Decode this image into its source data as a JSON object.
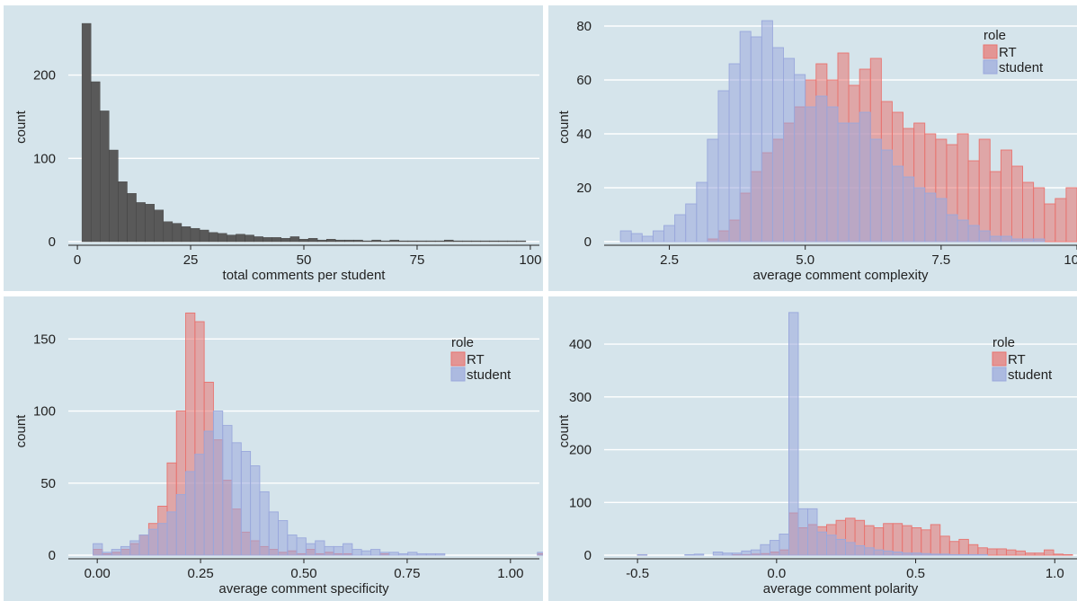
{
  "chart_data": [
    {
      "type": "bar",
      "xlabel": "total comments per student",
      "ylabel": "count",
      "xlim": [
        -2,
        102
      ],
      "ylim": [
        0,
        275
      ],
      "xticks": [
        0,
        25,
        50,
        75,
        100
      ],
      "xtick_labels": [
        "0",
        "25",
        "50",
        "75",
        "100"
      ],
      "yticks": [
        0,
        100,
        200
      ],
      "ytick_labels": [
        "0",
        "100",
        "200"
      ],
      "grid": true,
      "bin_start": 1,
      "bin_width": 2,
      "series": [
        {
          "name": "",
          "color": "#595959",
          "values": [
            262,
            192,
            157,
            110,
            72,
            58,
            47,
            45,
            38,
            24,
            22,
            18,
            16,
            14,
            11,
            10,
            8,
            9,
            8,
            6,
            5,
            5,
            4,
            6,
            3,
            4,
            2,
            3,
            2,
            2,
            2,
            1,
            2,
            1,
            2,
            1,
            1,
            1,
            1,
            1,
            2,
            1,
            1,
            1,
            1,
            1,
            1,
            1,
            1
          ]
        }
      ]
    },
    {
      "type": "bar",
      "xlabel": "average comment complexity",
      "ylabel": "count",
      "xlim": [
        1.3,
        10
      ],
      "ylim": [
        0,
        85
      ],
      "xticks": [
        2.5,
        5.0,
        7.5,
        10.0
      ],
      "xtick_labels": [
        "2.5",
        "5.0",
        "7.5",
        "10.0"
      ],
      "yticks": [
        0,
        20,
        40,
        60,
        80
      ],
      "ytick_labels": [
        "0",
        "20",
        "40",
        "60",
        "80"
      ],
      "grid": true,
      "legend": {
        "title": "role",
        "position": "top-right"
      },
      "bin_start": 1.6,
      "bin_width": 0.2,
      "series": [
        {
          "name": "RT",
          "color": "#e8736f",
          "values": [
            0,
            0,
            0,
            0,
            0,
            0,
            0,
            0,
            1,
            4,
            8,
            18,
            26,
            33,
            38,
            44,
            50,
            60,
            66,
            60,
            70,
            58,
            64,
            68,
            52,
            48,
            42,
            44,
            40,
            38,
            36,
            40,
            30,
            38,
            26,
            34,
            28,
            22,
            20,
            14,
            16,
            20,
            12,
            14,
            18,
            10,
            16,
            12,
            10,
            8,
            8,
            6,
            6,
            4,
            6,
            0,
            2,
            4,
            2
          ]
        },
        {
          "name": "student",
          "color": "#9aa8dc",
          "values": [
            4,
            3,
            2,
            4,
            6,
            10,
            14,
            22,
            38,
            56,
            66,
            78,
            76,
            82,
            72,
            68,
            62,
            50,
            54,
            50,
            44,
            44,
            48,
            38,
            34,
            28,
            24,
            20,
            18,
            16,
            10,
            8,
            6,
            4,
            2,
            2,
            1,
            1,
            1,
            0,
            0,
            0,
            0,
            0,
            0,
            0,
            0,
            0,
            0,
            0,
            0,
            0,
            0,
            0,
            0,
            0,
            0,
            0,
            0
          ]
        }
      ]
    },
    {
      "type": "bar",
      "xlabel": "average comment specificity",
      "ylabel": "count",
      "xlim": [
        -0.07,
        1.07
      ],
      "ylim": [
        0,
        172
      ],
      "xticks": [
        0.0,
        0.25,
        0.5,
        0.75,
        1.0
      ],
      "xtick_labels": [
        "0.00",
        "0.25",
        "0.50",
        "0.75",
        "1.00"
      ],
      "yticks": [
        0,
        50,
        100,
        150
      ],
      "ytick_labels": [
        "0",
        "50",
        "100",
        "150"
      ],
      "grid": true,
      "legend": {
        "title": "role",
        "position": "top-right"
      },
      "bin_start": -0.01,
      "bin_width": 0.0224,
      "series": [
        {
          "name": "RT",
          "color": "#e8736f",
          "values": [
            4,
            1,
            2,
            4,
            8,
            14,
            22,
            34,
            64,
            100,
            168,
            162,
            120,
            80,
            52,
            32,
            16,
            10,
            6,
            4,
            2,
            3,
            1,
            4,
            1,
            2,
            1,
            1,
            0,
            0,
            0,
            1,
            0,
            0,
            0,
            0,
            0,
            0,
            0,
            0,
            0,
            0,
            0,
            0,
            0,
            0,
            0,
            0,
            1,
            1
          ]
        },
        {
          "name": "student",
          "color": "#9aa8dc",
          "values": [
            8,
            2,
            4,
            6,
            10,
            14,
            18,
            22,
            30,
            42,
            58,
            70,
            86,
            100,
            90,
            78,
            72,
            62,
            44,
            30,
            24,
            14,
            12,
            8,
            10,
            6,
            6,
            8,
            4,
            3,
            4,
            2,
            2,
            1,
            2,
            1,
            1,
            1,
            0,
            0,
            0,
            0,
            0,
            0,
            0,
            0,
            0,
            0,
            2,
            1
          ]
        }
      ]
    },
    {
      "type": "bar",
      "xlabel": "average comment polarity",
      "ylabel": "count",
      "xlim": [
        -0.62,
        1.08
      ],
      "ylim": [
        0,
        470
      ],
      "xticks": [
        -0.5,
        0.0,
        0.5,
        1.0
      ],
      "xtick_labels": [
        "-0.5",
        "0.0",
        "0.5",
        "1.0"
      ],
      "yticks": [
        0,
        100,
        200,
        300,
        400
      ],
      "ytick_labels": [
        "0",
        "100",
        "200",
        "300",
        "400"
      ],
      "grid": true,
      "legend": {
        "title": "role",
        "position": "top-right"
      },
      "bin_start": -0.5,
      "bin_width": 0.034,
      "series": [
        {
          "name": "RT",
          "color": "#e8736f",
          "values": [
            1,
            0,
            0,
            0,
            0,
            0,
            0,
            0,
            0,
            0,
            1,
            1,
            2,
            3,
            6,
            10,
            80,
            52,
            58,
            54,
            58,
            66,
            70,
            66,
            56,
            52,
            60,
            60,
            56,
            52,
            48,
            58,
            36,
            26,
            30,
            20,
            14,
            12,
            12,
            10,
            8,
            4,
            4,
            10,
            2,
            1
          ]
        },
        {
          "name": "student",
          "color": "#9aa8dc",
          "values": [
            1,
            0,
            0,
            0,
            0,
            1,
            2,
            0,
            6,
            4,
            4,
            8,
            10,
            20,
            28,
            40,
            460,
            88,
            88,
            44,
            38,
            30,
            24,
            18,
            14,
            10,
            8,
            6,
            4,
            4,
            3,
            2,
            2,
            1,
            1,
            1,
            1,
            0,
            0,
            0,
            0,
            0,
            0,
            0,
            0,
            0
          ]
        }
      ]
    }
  ]
}
